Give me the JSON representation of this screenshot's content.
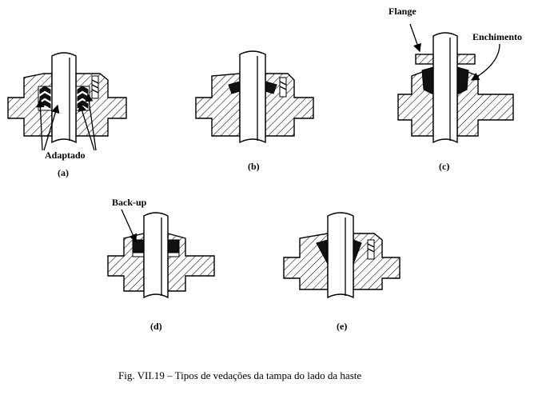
{
  "figure": {
    "labels": {
      "flange": "Flange",
      "enchimento": "Enchimento",
      "adaptado": "Adaptado",
      "backup": "Back-up"
    },
    "panels": [
      {
        "id": "a",
        "label": "(a)"
      },
      {
        "id": "b",
        "label": "(b)"
      },
      {
        "id": "c",
        "label": "(c)"
      },
      {
        "id": "d",
        "label": "(d)"
      },
      {
        "id": "e",
        "label": "(e)"
      }
    ],
    "caption": "Fig. VII.19 – Tipos de vedações da tampa do lado da haste"
  }
}
